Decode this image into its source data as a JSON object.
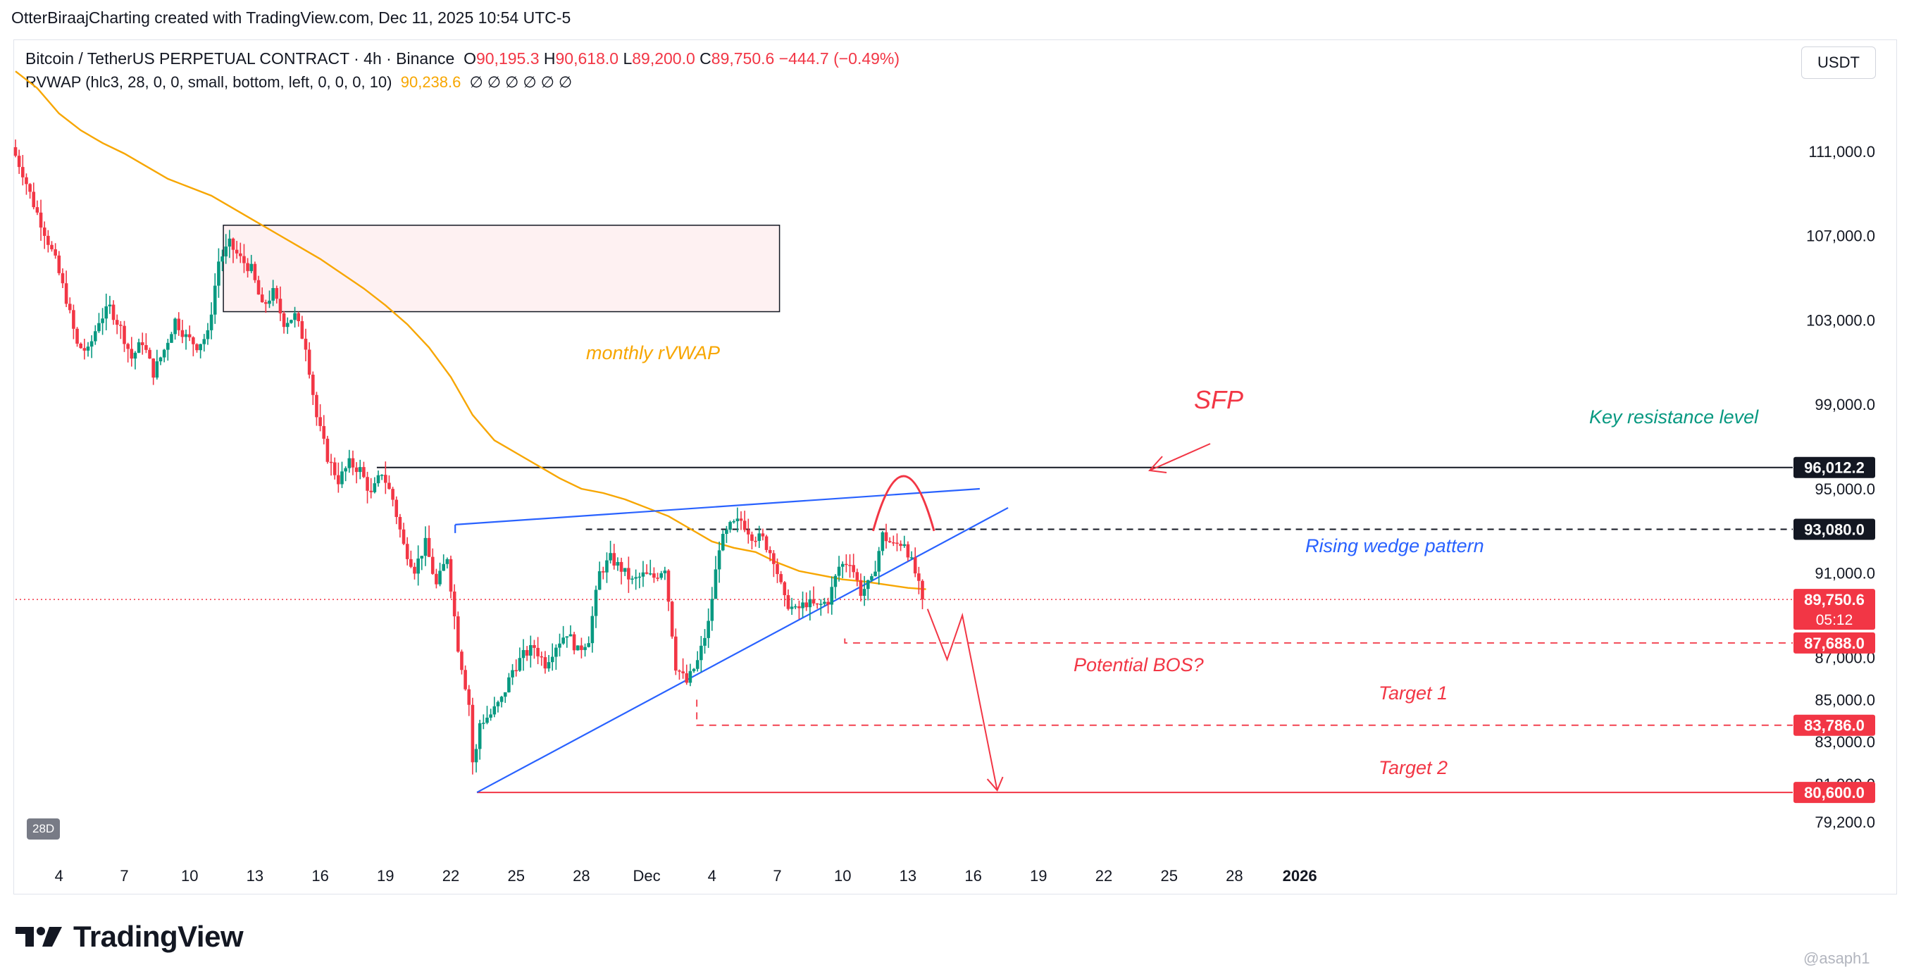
{
  "header": {
    "attribution": "OtterBiraajCharting created with TradingView.com, Dec 11, 2025 10:54 UTC-5"
  },
  "legend": {
    "symbol": "Bitcoin / TetherUS PERPETUAL CONTRACT · 4h · Binance",
    "open_label": "O",
    "open": "90,195.3",
    "high_label": "H",
    "high": "90,618.0",
    "low_label": "L",
    "low": "89,200.0",
    "close_label": "C",
    "close": "89,750.6",
    "change": "−444.7 (−0.49%)",
    "indicator": "RVWAP (hlc3, 28, 0, 0, small, bottom, left, 0, 0, 0, 10)",
    "indicator_value": "90,238.6",
    "indicator_empty": "∅ ∅ ∅ ∅ ∅ ∅"
  },
  "currency_button": "USDT",
  "timeframe_badge": "28D",
  "colors": {
    "up": "#089981",
    "down": "#f23645",
    "rvwap": "#f7a600",
    "wedge": "#2962ff",
    "annotation_red": "#f23645",
    "resistance_label": "#089981"
  },
  "brand": {
    "name": "TradingView"
  },
  "watermark": "@asaph1",
  "chart_data": {
    "type": "candlestick",
    "interval": "4h",
    "y_axis": {
      "ticks": [
        {
          "value": 111000,
          "label": "111,000.0"
        },
        {
          "value": 107000,
          "label": "107,000.0"
        },
        {
          "value": 103000,
          "label": "103,000.0"
        },
        {
          "value": 99000,
          "label": "99,000.0"
        },
        {
          "value": 95000,
          "label": "95,000.0"
        },
        {
          "value": 91000,
          "label": "91,000.0"
        },
        {
          "value": 87000,
          "label": "87,000.0"
        },
        {
          "value": 85000,
          "label": "85,000.0"
        },
        {
          "value": 83000,
          "label": "83,000.0"
        },
        {
          "value": 81000,
          "label": "81,000.0"
        },
        {
          "value": 79200,
          "label": "79,200.0"
        }
      ],
      "price_tags": [
        {
          "value": 96012.2,
          "label": "96,012.2",
          "style": "black"
        },
        {
          "value": 93080.0,
          "label": "93,080.0",
          "style": "black"
        },
        {
          "value": 89750.6,
          "label": "89,750.6",
          "sub": "05:12",
          "style": "red"
        },
        {
          "value": 87688.0,
          "label": "87,688.0",
          "style": "red"
        },
        {
          "value": 83786.0,
          "label": "83,786.0",
          "style": "red"
        },
        {
          "value": 80600.0,
          "label": "80,600.0",
          "style": "red"
        }
      ]
    },
    "x_axis": {
      "ticks": [
        "4",
        "7",
        "10",
        "13",
        "16",
        "19",
        "22",
        "25",
        "28",
        "Dec",
        "4",
        "7",
        "10",
        "13",
        "16",
        "19",
        "22",
        "25",
        "28",
        "2026"
      ]
    },
    "annotations": {
      "rvwap_label": "monthly rVWAP",
      "sfp": "SFP",
      "key_resistance": "Key resistance level",
      "rising_wedge": "Rising wedge pattern",
      "potential_bos": "Potential BOS?",
      "target1": "Target 1",
      "target2": "Target 2"
    },
    "levels": {
      "key_resistance": 96012.2,
      "range_high": 93080.0,
      "current": 89750.6,
      "bos_level": 87688.0,
      "target1": 83786.0,
      "target2": 80600.0
    },
    "supply_zone": {
      "from": 103400,
      "to": 107500
    },
    "price_path": [
      {
        "d": 0.0,
        "p": 111200
      },
      {
        "d": 0.5,
        "p": 110000
      },
      {
        "d": 1.0,
        "p": 108500
      },
      {
        "d": 1.5,
        "p": 107200
      },
      {
        "d": 2.0,
        "p": 105800
      },
      {
        "d": 2.5,
        "p": 104000
      },
      {
        "d": 3.0,
        "p": 101800
      },
      {
        "d": 3.5,
        "p": 101500
      },
      {
        "d": 4.0,
        "p": 103000
      },
      {
        "d": 4.5,
        "p": 103600
      },
      {
        "d": 5.0,
        "p": 102600
      },
      {
        "d": 5.5,
        "p": 101200
      },
      {
        "d": 6.0,
        "p": 102000
      },
      {
        "d": 6.5,
        "p": 100500
      },
      {
        "d": 7.0,
        "p": 101600
      },
      {
        "d": 7.5,
        "p": 103000
      },
      {
        "d": 8.0,
        "p": 102200
      },
      {
        "d": 8.5,
        "p": 101800
      },
      {
        "d": 9.0,
        "p": 102300
      },
      {
        "d": 9.5,
        "p": 105800
      },
      {
        "d": 10.0,
        "p": 106600
      },
      {
        "d": 10.5,
        "p": 105900
      },
      {
        "d": 11.0,
        "p": 105400
      },
      {
        "d": 11.5,
        "p": 103600
      },
      {
        "d": 12.0,
        "p": 104300
      },
      {
        "d": 12.5,
        "p": 102900
      },
      {
        "d": 13.0,
        "p": 103200
      },
      {
        "d": 13.5,
        "p": 101800
      },
      {
        "d": 14.0,
        "p": 98400
      },
      {
        "d": 14.5,
        "p": 96500
      },
      {
        "d": 15.0,
        "p": 95400
      },
      {
        "d": 15.5,
        "p": 96200
      },
      {
        "d": 16.0,
        "p": 95900
      },
      {
        "d": 16.5,
        "p": 94700
      },
      {
        "d": 17.0,
        "p": 95800
      },
      {
        "d": 17.5,
        "p": 94500
      },
      {
        "d": 18.0,
        "p": 92300
      },
      {
        "d": 18.5,
        "p": 91200
      },
      {
        "d": 19.0,
        "p": 92400
      },
      {
        "d": 19.5,
        "p": 90400
      },
      {
        "d": 20.0,
        "p": 91800
      },
      {
        "d": 20.5,
        "p": 87500
      },
      {
        "d": 21.0,
        "p": 84800
      },
      {
        "d": 21.2,
        "p": 81500
      },
      {
        "d": 21.5,
        "p": 83900
      },
      {
        "d": 22.0,
        "p": 84300
      },
      {
        "d": 22.5,
        "p": 85000
      },
      {
        "d": 23.0,
        "p": 86400
      },
      {
        "d": 23.5,
        "p": 87100
      },
      {
        "d": 24.0,
        "p": 87500
      },
      {
        "d": 24.5,
        "p": 86700
      },
      {
        "d": 25.0,
        "p": 87600
      },
      {
        "d": 25.5,
        "p": 88200
      },
      {
        "d": 26.0,
        "p": 87300
      },
      {
        "d": 26.5,
        "p": 87900
      },
      {
        "d": 27.0,
        "p": 91000
      },
      {
        "d": 27.5,
        "p": 91700
      },
      {
        "d": 28.0,
        "p": 91200
      },
      {
        "d": 28.5,
        "p": 90600
      },
      {
        "d": 29.0,
        "p": 90900
      },
      {
        "d": 29.5,
        "p": 90800
      },
      {
        "d": 30.0,
        "p": 91300
      },
      {
        "d": 30.5,
        "p": 86600
      },
      {
        "d": 31.0,
        "p": 85800
      },
      {
        "d": 31.5,
        "p": 86800
      },
      {
        "d": 32.0,
        "p": 88600
      },
      {
        "d": 32.5,
        "p": 92300
      },
      {
        "d": 33.0,
        "p": 93200
      },
      {
        "d": 33.5,
        "p": 93500
      },
      {
        "d": 34.0,
        "p": 92800
      },
      {
        "d": 34.5,
        "p": 92600
      },
      {
        "d": 35.0,
        "p": 91700
      },
      {
        "d": 35.5,
        "p": 89700
      },
      {
        "d": 36.0,
        "p": 89200
      },
      {
        "d": 36.5,
        "p": 89600
      },
      {
        "d": 37.0,
        "p": 89400
      },
      {
        "d": 37.5,
        "p": 89700
      },
      {
        "d": 38.0,
        "p": 91300
      },
      {
        "d": 38.5,
        "p": 91600
      },
      {
        "d": 39.0,
        "p": 90100
      },
      {
        "d": 39.5,
        "p": 90600
      },
      {
        "d": 40.0,
        "p": 92800
      },
      {
        "d": 40.5,
        "p": 92300
      },
      {
        "d": 41.0,
        "p": 92500
      },
      {
        "d": 41.5,
        "p": 91000
      },
      {
        "d": 41.83,
        "p": 89750.6
      }
    ],
    "rvwap_path": [
      {
        "d": 0.0,
        "p": 114800
      },
      {
        "d": 1.0,
        "p": 114000
      },
      {
        "d": 2.0,
        "p": 112800
      },
      {
        "d": 3.0,
        "p": 112000
      },
      {
        "d": 4.0,
        "p": 111400
      },
      {
        "d": 5.0,
        "p": 110900
      },
      {
        "d": 6.0,
        "p": 110300
      },
      {
        "d": 7.0,
        "p": 109700
      },
      {
        "d": 8.0,
        "p": 109300
      },
      {
        "d": 9.0,
        "p": 108900
      },
      {
        "d": 10.0,
        "p": 108300
      },
      {
        "d": 11.0,
        "p": 107700
      },
      {
        "d": 12.0,
        "p": 107100
      },
      {
        "d": 13.0,
        "p": 106500
      },
      {
        "d": 14.0,
        "p": 105900
      },
      {
        "d": 15.0,
        "p": 105200
      },
      {
        "d": 16.0,
        "p": 104500
      },
      {
        "d": 17.0,
        "p": 103700
      },
      {
        "d": 18.0,
        "p": 102800
      },
      {
        "d": 19.0,
        "p": 101700
      },
      {
        "d": 20.0,
        "p": 100300
      },
      {
        "d": 21.0,
        "p": 98500
      },
      {
        "d": 22.0,
        "p": 97300
      },
      {
        "d": 23.0,
        "p": 96700
      },
      {
        "d": 24.0,
        "p": 96100
      },
      {
        "d": 25.0,
        "p": 95500
      },
      {
        "d": 26.0,
        "p": 95000
      },
      {
        "d": 27.0,
        "p": 94800
      },
      {
        "d": 28.0,
        "p": 94500
      },
      {
        "d": 29.0,
        "p": 94100
      },
      {
        "d": 30.0,
        "p": 93700
      },
      {
        "d": 31.0,
        "p": 93100
      },
      {
        "d": 32.0,
        "p": 92500
      },
      {
        "d": 33.0,
        "p": 92200
      },
      {
        "d": 34.0,
        "p": 92000
      },
      {
        "d": 35.0,
        "p": 91500
      },
      {
        "d": 36.0,
        "p": 91100
      },
      {
        "d": 37.0,
        "p": 90900
      },
      {
        "d": 38.0,
        "p": 90700
      },
      {
        "d": 39.0,
        "p": 90600
      },
      {
        "d": 40.0,
        "p": 90450
      },
      {
        "d": 41.0,
        "p": 90300
      },
      {
        "d": 41.83,
        "p": 90238.6
      }
    ],
    "wedge_upper": [
      {
        "d": 20.2,
        "p": 93300
      },
      {
        "d": 44.3,
        "p": 95000
      }
    ],
    "wedge_lower": [
      {
        "d": 21.2,
        "p": 80600
      },
      {
        "d": 45.6,
        "p": 94100
      }
    ],
    "projection": [
      {
        "d": 41.9,
        "p": 89300
      },
      {
        "d": 42.8,
        "p": 86900
      },
      {
        "d": 43.5,
        "p": 89000
      },
      {
        "d": 45.1,
        "p": 80700
      }
    ],
    "sfp_arc": {
      "d_from": 39.4,
      "d_to": 42.2,
      "peak": 95600
    }
  }
}
